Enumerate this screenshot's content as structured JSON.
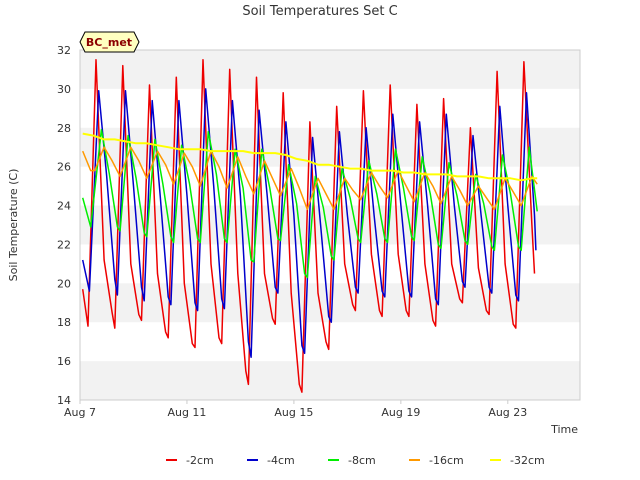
{
  "chart_data": {
    "type": "line",
    "title": "Soil Temperatures Set C",
    "xlabel": "Time",
    "ylabel": "Soil Temperature (C)",
    "badge": "BC_met",
    "xlim": [
      7.0,
      25.7
    ],
    "ylim": [
      14,
      32
    ],
    "x_unit": "day of August",
    "x_ticks": [
      {
        "value": 7,
        "label": "Aug 7"
      },
      {
        "value": 11,
        "label": "Aug 11"
      },
      {
        "value": 15,
        "label": "Aug 15"
      },
      {
        "value": 19,
        "label": "Aug 19"
      },
      {
        "value": 23,
        "label": "Aug 23"
      }
    ],
    "y_ticks": [
      14,
      16,
      18,
      20,
      22,
      24,
      26,
      28,
      30,
      32
    ],
    "grid": "horizontal bands",
    "legend_position": "bottom",
    "colors": {
      "band": "#f2f2f2",
      "plot_border": "#cccccc",
      "badge_fill": "#ffffc0"
    },
    "series": [
      {
        "name": "-2cm",
        "color": "#ee0000",
        "width": 1.5,
        "points": [
          [
            7.1,
            19.7
          ],
          [
            7.3,
            17.8
          ],
          [
            7.6,
            31.5
          ],
          [
            7.9,
            21.2
          ],
          [
            8.2,
            18.5
          ],
          [
            8.3,
            17.7
          ],
          [
            8.6,
            31.2
          ],
          [
            8.9,
            21.0
          ],
          [
            9.2,
            18.4
          ],
          [
            9.3,
            18.1
          ],
          [
            9.6,
            30.2
          ],
          [
            9.9,
            20.5
          ],
          [
            10.2,
            17.5
          ],
          [
            10.3,
            17.2
          ],
          [
            10.6,
            30.6
          ],
          [
            10.9,
            20.0
          ],
          [
            11.2,
            16.9
          ],
          [
            11.3,
            16.7
          ],
          [
            11.6,
            31.5
          ],
          [
            11.9,
            21.0
          ],
          [
            12.2,
            17.2
          ],
          [
            12.3,
            16.9
          ],
          [
            12.6,
            31.0
          ],
          [
            12.9,
            20.5
          ],
          [
            13.2,
            15.5
          ],
          [
            13.3,
            14.8
          ],
          [
            13.6,
            30.6
          ],
          [
            13.9,
            20.5
          ],
          [
            14.2,
            18.2
          ],
          [
            14.3,
            17.9
          ],
          [
            14.6,
            29.8
          ],
          [
            14.9,
            19.5
          ],
          [
            15.2,
            14.8
          ],
          [
            15.3,
            14.4
          ],
          [
            15.6,
            28.3
          ],
          [
            15.9,
            19.5
          ],
          [
            16.2,
            17.0
          ],
          [
            16.3,
            16.6
          ],
          [
            16.6,
            29.1
          ],
          [
            16.9,
            21.0
          ],
          [
            17.2,
            18.9
          ],
          [
            17.3,
            18.6
          ],
          [
            17.6,
            29.9
          ],
          [
            17.9,
            21.5
          ],
          [
            18.2,
            18.6
          ],
          [
            18.3,
            18.3
          ],
          [
            18.6,
            30.2
          ],
          [
            18.9,
            21.5
          ],
          [
            19.2,
            18.6
          ],
          [
            19.3,
            18.3
          ],
          [
            19.6,
            29.2
          ],
          [
            19.9,
            21.0
          ],
          [
            20.2,
            18.1
          ],
          [
            20.3,
            17.8
          ],
          [
            20.6,
            29.5
          ],
          [
            20.9,
            21.0
          ],
          [
            21.2,
            19.2
          ],
          [
            21.3,
            19.0
          ],
          [
            21.6,
            28.0
          ],
          [
            21.9,
            20.8
          ],
          [
            22.2,
            18.6
          ],
          [
            22.3,
            18.4
          ],
          [
            22.6,
            30.9
          ],
          [
            22.9,
            21.0
          ],
          [
            23.2,
            17.9
          ],
          [
            23.3,
            17.7
          ],
          [
            23.6,
            31.4
          ],
          [
            23.9,
            23.0
          ],
          [
            24.0,
            20.5
          ]
        ]
      },
      {
        "name": "-4cm",
        "color": "#0000cc",
        "width": 1.5,
        "points": [
          [
            7.1,
            21.2
          ],
          [
            7.35,
            19.6
          ],
          [
            7.7,
            29.9
          ],
          [
            8.0,
            25.5
          ],
          [
            8.3,
            20.2
          ],
          [
            8.4,
            19.4
          ],
          [
            8.7,
            29.9
          ],
          [
            9.0,
            25.0
          ],
          [
            9.3,
            19.8
          ],
          [
            9.4,
            19.1
          ],
          [
            9.7,
            29.4
          ],
          [
            10.0,
            24.5
          ],
          [
            10.3,
            19.3
          ],
          [
            10.4,
            18.9
          ],
          [
            10.7,
            29.4
          ],
          [
            11.0,
            24.5
          ],
          [
            11.3,
            19.0
          ],
          [
            11.4,
            18.6
          ],
          [
            11.7,
            30.0
          ],
          [
            12.0,
            25.0
          ],
          [
            12.3,
            19.2
          ],
          [
            12.4,
            18.7
          ],
          [
            12.7,
            29.4
          ],
          [
            13.0,
            24.5
          ],
          [
            13.3,
            17.0
          ],
          [
            13.4,
            16.2
          ],
          [
            13.7,
            28.9
          ],
          [
            14.0,
            24.5
          ],
          [
            14.3,
            19.8
          ],
          [
            14.4,
            19.5
          ],
          [
            14.7,
            28.3
          ],
          [
            15.0,
            23.5
          ],
          [
            15.3,
            16.8
          ],
          [
            15.4,
            16.4
          ],
          [
            15.7,
            27.5
          ],
          [
            16.0,
            23.0
          ],
          [
            16.3,
            18.3
          ],
          [
            16.4,
            18.0
          ],
          [
            16.7,
            27.8
          ],
          [
            17.0,
            23.5
          ],
          [
            17.3,
            19.8
          ],
          [
            17.4,
            19.5
          ],
          [
            17.7,
            28.0
          ],
          [
            18.0,
            23.5
          ],
          [
            18.3,
            19.6
          ],
          [
            18.4,
            19.3
          ],
          [
            18.7,
            28.7
          ],
          [
            19.0,
            24.0
          ],
          [
            19.3,
            19.6
          ],
          [
            19.4,
            19.3
          ],
          [
            19.7,
            28.3
          ],
          [
            20.0,
            24.0
          ],
          [
            20.3,
            19.2
          ],
          [
            20.4,
            18.9
          ],
          [
            20.7,
            28.7
          ],
          [
            21.0,
            24.0
          ],
          [
            21.3,
            20.1
          ],
          [
            21.4,
            19.8
          ],
          [
            21.7,
            27.6
          ],
          [
            22.0,
            23.5
          ],
          [
            22.3,
            19.8
          ],
          [
            22.4,
            19.5
          ],
          [
            22.7,
            29.1
          ],
          [
            23.0,
            24.0
          ],
          [
            23.3,
            19.4
          ],
          [
            23.4,
            19.1
          ],
          [
            23.7,
            29.8
          ],
          [
            24.0,
            23.5
          ],
          [
            24.05,
            21.7
          ]
        ]
      },
      {
        "name": "-8cm",
        "color": "#00ee00",
        "width": 1.5,
        "points": [
          [
            7.1,
            24.4
          ],
          [
            7.4,
            22.9
          ],
          [
            7.8,
            27.9
          ],
          [
            8.1,
            25.6
          ],
          [
            8.4,
            22.9
          ],
          [
            8.5,
            22.7
          ],
          [
            8.8,
            27.6
          ],
          [
            9.1,
            25.4
          ],
          [
            9.4,
            22.6
          ],
          [
            9.5,
            22.4
          ],
          [
            9.8,
            27.4
          ],
          [
            10.1,
            25.1
          ],
          [
            10.4,
            22.4
          ],
          [
            10.5,
            22.1
          ],
          [
            10.8,
            27.1
          ],
          [
            11.1,
            25.1
          ],
          [
            11.4,
            22.3
          ],
          [
            11.5,
            22.1
          ],
          [
            11.8,
            27.8
          ],
          [
            12.1,
            25.6
          ],
          [
            12.4,
            22.3
          ],
          [
            12.5,
            22.1
          ],
          [
            12.8,
            26.9
          ],
          [
            13.1,
            24.9
          ],
          [
            13.4,
            21.2
          ],
          [
            13.5,
            21.1
          ],
          [
            13.8,
            26.9
          ],
          [
            14.1,
            24.9
          ],
          [
            14.4,
            22.3
          ],
          [
            14.5,
            22.2
          ],
          [
            14.8,
            26.1
          ],
          [
            15.1,
            24.1
          ],
          [
            15.4,
            20.5
          ],
          [
            15.5,
            20.3
          ],
          [
            15.8,
            25.5
          ],
          [
            16.1,
            23.9
          ],
          [
            16.4,
            21.4
          ],
          [
            16.5,
            21.2
          ],
          [
            16.8,
            25.9
          ],
          [
            17.1,
            24.4
          ],
          [
            17.4,
            22.3
          ],
          [
            17.5,
            22.1
          ],
          [
            17.8,
            26.3
          ],
          [
            18.1,
            24.6
          ],
          [
            18.4,
            22.3
          ],
          [
            18.5,
            22.1
          ],
          [
            18.8,
            26.9
          ],
          [
            19.1,
            24.9
          ],
          [
            19.4,
            22.4
          ],
          [
            19.5,
            22.2
          ],
          [
            19.8,
            26.5
          ],
          [
            20.1,
            24.6
          ],
          [
            20.4,
            22.0
          ],
          [
            20.5,
            21.8
          ],
          [
            20.8,
            26.2
          ],
          [
            21.1,
            24.5
          ],
          [
            21.4,
            22.2
          ],
          [
            21.5,
            22.0
          ],
          [
            21.8,
            25.6
          ],
          [
            22.1,
            24.1
          ],
          [
            22.4,
            21.9
          ],
          [
            22.5,
            21.7
          ],
          [
            22.8,
            26.6
          ],
          [
            23.1,
            24.6
          ],
          [
            23.4,
            21.9
          ],
          [
            23.5,
            21.7
          ],
          [
            23.8,
            27.0
          ],
          [
            24.1,
            23.7
          ]
        ]
      },
      {
        "name": "-16cm",
        "color": "#ff9900",
        "width": 1.5,
        "points": [
          [
            7.1,
            26.8
          ],
          [
            7.4,
            25.8
          ],
          [
            7.55,
            25.8
          ],
          [
            7.9,
            27.0
          ],
          [
            8.2,
            26.3
          ],
          [
            8.5,
            25.5
          ],
          [
            8.9,
            27.0
          ],
          [
            9.2,
            26.3
          ],
          [
            9.5,
            25.4
          ],
          [
            9.9,
            26.8
          ],
          [
            10.2,
            26.1
          ],
          [
            10.5,
            25.1
          ],
          [
            10.9,
            26.7
          ],
          [
            11.2,
            26.0
          ],
          [
            11.5,
            25.0
          ],
          [
            11.9,
            26.8
          ],
          [
            12.2,
            26.0
          ],
          [
            12.5,
            24.9
          ],
          [
            12.9,
            26.5
          ],
          [
            13.2,
            25.5
          ],
          [
            13.5,
            24.6
          ],
          [
            13.9,
            26.3
          ],
          [
            14.2,
            25.4
          ],
          [
            14.5,
            24.5
          ],
          [
            14.9,
            25.9
          ],
          [
            15.2,
            24.9
          ],
          [
            15.5,
            23.8
          ],
          [
            15.9,
            25.4
          ],
          [
            16.2,
            24.6
          ],
          [
            16.5,
            23.8
          ],
          [
            16.9,
            25.4
          ],
          [
            17.2,
            24.8
          ],
          [
            17.5,
            24.3
          ],
          [
            17.9,
            25.7
          ],
          [
            18.2,
            25.0
          ],
          [
            18.5,
            24.4
          ],
          [
            18.9,
            25.8
          ],
          [
            19.2,
            25.0
          ],
          [
            19.5,
            24.2
          ],
          [
            19.9,
            25.7
          ],
          [
            20.2,
            25.0
          ],
          [
            20.5,
            24.1
          ],
          [
            20.9,
            25.5
          ],
          [
            21.2,
            24.8
          ],
          [
            21.5,
            24.0
          ],
          [
            21.9,
            25.0
          ],
          [
            22.2,
            24.4
          ],
          [
            22.5,
            23.8
          ],
          [
            22.9,
            25.4
          ],
          [
            23.2,
            24.7
          ],
          [
            23.5,
            24.0
          ],
          [
            23.9,
            25.5
          ],
          [
            24.1,
            25.1
          ]
        ]
      },
      {
        "name": "-32cm",
        "color": "#ffff00",
        "width": 2,
        "points": [
          [
            7.1,
            27.7
          ],
          [
            7.5,
            27.6
          ],
          [
            7.9,
            27.4
          ],
          [
            8.3,
            27.4
          ],
          [
            8.7,
            27.3
          ],
          [
            9.1,
            27.2
          ],
          [
            9.5,
            27.2
          ],
          [
            9.9,
            27.1
          ],
          [
            10.3,
            27.0
          ],
          [
            10.7,
            26.9
          ],
          [
            11.1,
            26.9
          ],
          [
            11.5,
            26.9
          ],
          [
            11.9,
            26.8
          ],
          [
            12.3,
            26.8
          ],
          [
            12.7,
            26.8
          ],
          [
            13.1,
            26.8
          ],
          [
            13.5,
            26.7
          ],
          [
            13.9,
            26.7
          ],
          [
            14.3,
            26.7
          ],
          [
            14.7,
            26.6
          ],
          [
            15.1,
            26.4
          ],
          [
            15.5,
            26.3
          ],
          [
            15.9,
            26.1
          ],
          [
            16.3,
            26.1
          ],
          [
            16.7,
            26.0
          ],
          [
            17.1,
            25.9
          ],
          [
            17.5,
            25.9
          ],
          [
            17.9,
            25.8
          ],
          [
            18.3,
            25.8
          ],
          [
            18.7,
            25.8
          ],
          [
            19.1,
            25.7
          ],
          [
            19.5,
            25.7
          ],
          [
            19.9,
            25.6
          ],
          [
            20.3,
            25.6
          ],
          [
            20.7,
            25.6
          ],
          [
            21.1,
            25.5
          ],
          [
            21.5,
            25.5
          ],
          [
            21.9,
            25.5
          ],
          [
            22.3,
            25.4
          ],
          [
            22.7,
            25.4
          ],
          [
            23.1,
            25.4
          ],
          [
            23.5,
            25.3
          ],
          [
            23.9,
            25.4
          ],
          [
            24.1,
            25.4
          ]
        ]
      }
    ]
  }
}
